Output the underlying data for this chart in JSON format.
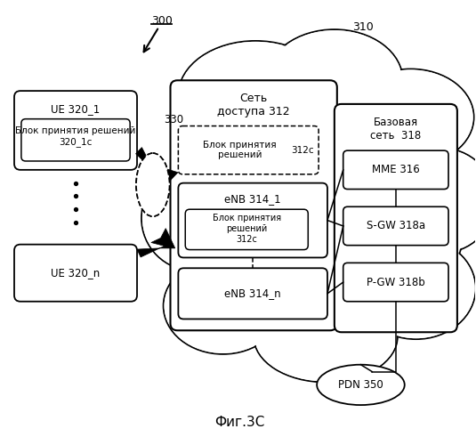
{
  "title": "Фиг.3С",
  "background_color": "#ffffff",
  "label_300": "300",
  "label_310": "310",
  "label_330": "330",
  "label_ue1": "UE 320_1",
  "label_ue1_block": "Блок принятия решений\n320_1c",
  "label_uen": "UE 320_n",
  "label_access_net": "Сеть\nдоступа 312",
  "label_decision_block_top": "Блок принятия\nрешений",
  "label_312c_top": "312c",
  "label_enb1": "eNB 314_1",
  "label_decision_block_enb": "Блок принятия\nрешений\n312c",
  "label_enbn": "eNB 314_n",
  "label_base_net": "Базовая\nсеть  318",
  "label_mme": "MME 316",
  "label_sgw": "S-GW 318a",
  "label_pgw": "P-GW 318b",
  "label_pdn": "PDN 350"
}
